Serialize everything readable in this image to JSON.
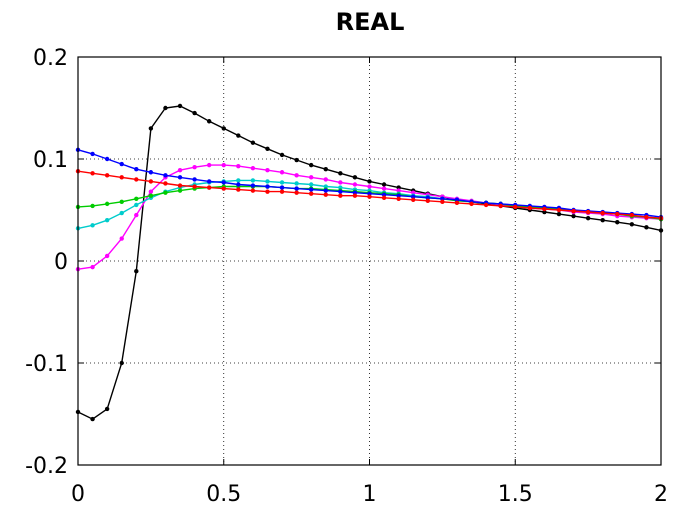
{
  "chart_data": {
    "type": "line",
    "title": "REAL",
    "xlabel": "",
    "ylabel": "",
    "xlim": [
      0,
      2
    ],
    "ylim": [
      -0.2,
      0.2
    ],
    "xticks": [
      0,
      0.5,
      1,
      1.5,
      2
    ],
    "xtick_labels": [
      "0",
      "0.5",
      "1",
      "1.5",
      "2"
    ],
    "yticks": [
      -0.2,
      -0.1,
      0,
      0.1,
      0.2
    ],
    "ytick_labels": [
      "-0.2",
      "-0.1",
      "0",
      "0.1",
      "0.2"
    ],
    "grid": true,
    "grid_style": "dotted",
    "legend": "none",
    "series": [
      {
        "color": "#000000",
        "x": [
          0,
          0.05,
          0.1,
          0.15,
          0.2,
          0.25,
          0.3,
          0.35,
          0.4,
          0.45,
          0.5,
          0.55,
          0.6,
          0.65,
          0.7,
          0.75,
          0.8,
          0.85,
          0.9,
          0.95,
          1,
          1.05,
          1.1,
          1.15,
          1.2,
          1.25,
          1.3,
          1.35,
          1.4,
          1.45,
          1.5,
          1.55,
          1.6,
          1.65,
          1.7,
          1.75,
          1.8,
          1.85,
          1.9,
          1.95,
          2
        ],
        "y": [
          -0.148,
          -0.155,
          -0.145,
          -0.1,
          -0.01,
          0.13,
          0.15,
          0.152,
          0.145,
          0.137,
          0.13,
          0.123,
          0.116,
          0.11,
          0.104,
          0.099,
          0.094,
          0.09,
          0.086,
          0.082,
          0.078,
          0.075,
          0.072,
          0.069,
          0.066,
          0.063,
          0.06,
          0.058,
          0.056,
          0.054,
          0.052,
          0.05,
          0.048,
          0.046,
          0.044,
          0.042,
          0.04,
          0.038,
          0.036,
          0.033,
          0.03
        ]
      },
      {
        "color": "#ff00ff",
        "x": [
          0,
          0.05,
          0.1,
          0.15,
          0.2,
          0.25,
          0.3,
          0.35,
          0.4,
          0.45,
          0.5,
          0.55,
          0.6,
          0.65,
          0.7,
          0.75,
          0.8,
          0.85,
          0.9,
          0.95,
          1,
          1.05,
          1.1,
          1.15,
          1.2,
          1.25,
          1.3,
          1.35,
          1.4,
          1.45,
          1.5,
          1.55,
          1.6,
          1.65,
          1.7,
          1.75,
          1.8,
          1.85,
          1.9,
          1.95,
          2
        ],
        "y": [
          -0.008,
          -0.006,
          0.005,
          0.022,
          0.045,
          0.068,
          0.082,
          0.089,
          0.092,
          0.094,
          0.094,
          0.093,
          0.091,
          0.089,
          0.087,
          0.084,
          0.082,
          0.08,
          0.077,
          0.075,
          0.073,
          0.071,
          0.069,
          0.067,
          0.065,
          0.063,
          0.061,
          0.059,
          0.057,
          0.055,
          0.054,
          0.052,
          0.051,
          0.05,
          0.048,
          0.047,
          0.046,
          0.044,
          0.043,
          0.042,
          0.041
        ]
      },
      {
        "color": "#00cccc",
        "x": [
          0,
          0.05,
          0.1,
          0.15,
          0.2,
          0.25,
          0.3,
          0.35,
          0.4,
          0.45,
          0.5,
          0.55,
          0.6,
          0.65,
          0.7,
          0.75,
          0.8,
          0.85,
          0.9,
          0.95,
          1,
          1.05,
          1.1,
          1.15,
          1.2,
          1.25,
          1.3,
          1.35,
          1.4,
          1.45,
          1.5,
          1.55,
          1.6,
          1.65,
          1.7,
          1.75,
          1.8,
          1.85,
          1.9,
          1.95,
          2
        ],
        "y": [
          0.032,
          0.035,
          0.04,
          0.047,
          0.055,
          0.062,
          0.068,
          0.072,
          0.075,
          0.077,
          0.078,
          0.079,
          0.079,
          0.078,
          0.077,
          0.076,
          0.075,
          0.073,
          0.072,
          0.07,
          0.069,
          0.067,
          0.066,
          0.064,
          0.063,
          0.061,
          0.06,
          0.058,
          0.057,
          0.056,
          0.054,
          0.053,
          0.052,
          0.05,
          0.049,
          0.048,
          0.047,
          0.046,
          0.044,
          0.043,
          0.042
        ]
      },
      {
        "color": "#00cc00",
        "x": [
          0,
          0.05,
          0.1,
          0.15,
          0.2,
          0.25,
          0.3,
          0.35,
          0.4,
          0.45,
          0.5,
          0.55,
          0.6,
          0.65,
          0.7,
          0.75,
          0.8,
          0.85,
          0.9,
          0.95,
          1,
          1.05,
          1.1,
          1.15,
          1.2,
          1.25,
          1.3,
          1.35,
          1.4,
          1.45,
          1.5,
          1.55,
          1.6,
          1.65,
          1.7,
          1.75,
          1.8,
          1.85,
          1.9,
          1.95,
          2
        ],
        "y": [
          0.053,
          0.054,
          0.056,
          0.058,
          0.061,
          0.064,
          0.067,
          0.069,
          0.071,
          0.072,
          0.073,
          0.073,
          0.073,
          0.073,
          0.072,
          0.071,
          0.071,
          0.07,
          0.069,
          0.068,
          0.067,
          0.066,
          0.065,
          0.063,
          0.062,
          0.061,
          0.059,
          0.058,
          0.057,
          0.056,
          0.054,
          0.053,
          0.052,
          0.051,
          0.049,
          0.048,
          0.047,
          0.046,
          0.044,
          0.043,
          0.041
        ]
      },
      {
        "color": "#0000ff",
        "x": [
          0,
          0.05,
          0.1,
          0.15,
          0.2,
          0.25,
          0.3,
          0.35,
          0.4,
          0.45,
          0.5,
          0.55,
          0.6,
          0.65,
          0.7,
          0.75,
          0.8,
          0.85,
          0.9,
          0.95,
          1,
          1.05,
          1.1,
          1.15,
          1.2,
          1.25,
          1.3,
          1.35,
          1.4,
          1.45,
          1.5,
          1.55,
          1.6,
          1.65,
          1.7,
          1.75,
          1.8,
          1.85,
          1.9,
          1.95,
          2
        ],
        "y": [
          0.109,
          0.105,
          0.1,
          0.095,
          0.09,
          0.087,
          0.084,
          0.082,
          0.08,
          0.078,
          0.077,
          0.075,
          0.074,
          0.073,
          0.072,
          0.071,
          0.07,
          0.069,
          0.068,
          0.067,
          0.066,
          0.065,
          0.064,
          0.063,
          0.062,
          0.061,
          0.06,
          0.058,
          0.057,
          0.056,
          0.055,
          0.054,
          0.053,
          0.052,
          0.05,
          0.049,
          0.048,
          0.047,
          0.046,
          0.045,
          0.043
        ]
      },
      {
        "color": "#ff0000",
        "x": [
          0,
          0.05,
          0.1,
          0.15,
          0.2,
          0.25,
          0.3,
          0.35,
          0.4,
          0.45,
          0.5,
          0.55,
          0.6,
          0.65,
          0.7,
          0.75,
          0.8,
          0.85,
          0.9,
          0.95,
          1,
          1.05,
          1.1,
          1.15,
          1.2,
          1.25,
          1.3,
          1.35,
          1.4,
          1.45,
          1.5,
          1.55,
          1.6,
          1.65,
          1.7,
          1.75,
          1.8,
          1.85,
          1.9,
          1.95,
          2
        ],
        "y": [
          0.088,
          0.086,
          0.084,
          0.082,
          0.08,
          0.078,
          0.076,
          0.074,
          0.073,
          0.072,
          0.071,
          0.07,
          0.069,
          0.068,
          0.068,
          0.067,
          0.066,
          0.065,
          0.064,
          0.064,
          0.063,
          0.062,
          0.061,
          0.06,
          0.059,
          0.058,
          0.057,
          0.056,
          0.055,
          0.054,
          0.053,
          0.052,
          0.051,
          0.05,
          0.049,
          0.048,
          0.047,
          0.046,
          0.045,
          0.043,
          0.042
        ]
      }
    ]
  }
}
